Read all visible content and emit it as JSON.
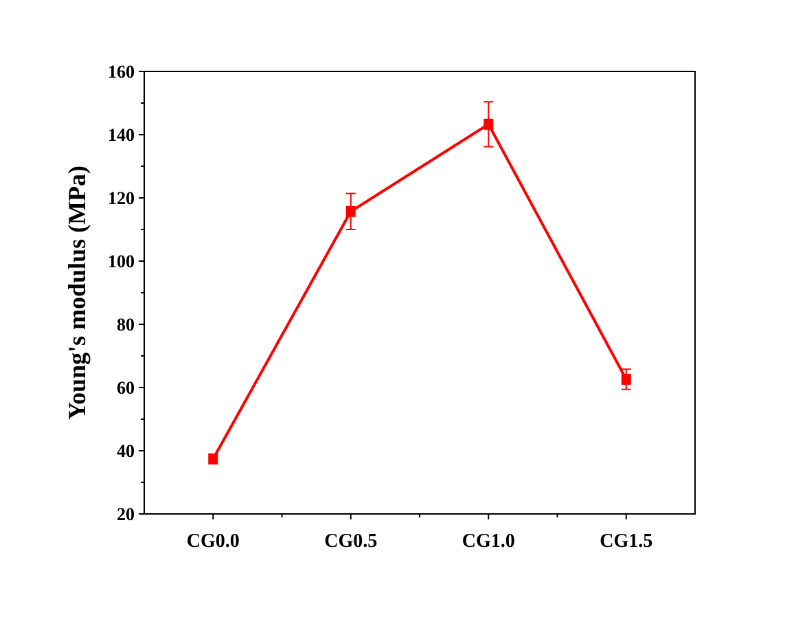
{
  "chart_data": {
    "type": "line",
    "title": "",
    "xlabel": "",
    "ylabel": "Young's modulus (MPa)",
    "categories": [
      "CG0.0",
      "CG0.5",
      "CG1.0",
      "CG1.5"
    ],
    "series": [
      {
        "name": "Young's modulus",
        "values": [
          37.4,
          115.7,
          143.3,
          62.6
        ],
        "errors": [
          1.5,
          5.7,
          7.1,
          3.2
        ],
        "color": "#ff0000",
        "marker": "square"
      }
    ],
    "ylim": [
      20,
      160
    ],
    "yticks": [
      20,
      40,
      60,
      80,
      100,
      120,
      140,
      160
    ],
    "grid": false,
    "legend": "none"
  }
}
